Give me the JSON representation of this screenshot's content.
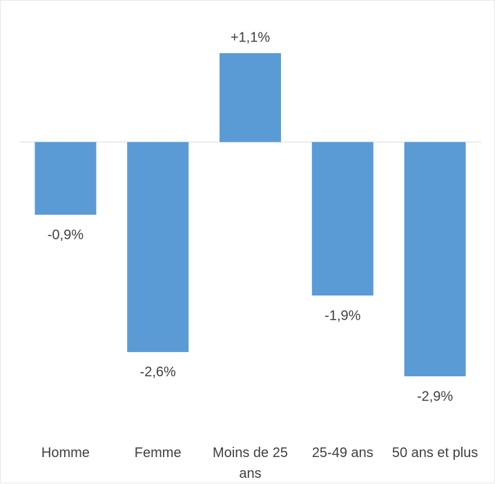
{
  "chart_data": {
    "type": "bar",
    "categories": [
      "Homme",
      "Femme",
      "Moins de 25 ans",
      "25-49 ans",
      "50 ans et plus"
    ],
    "values": [
      -0.9,
      -2.6,
      1.1,
      -1.9,
      -2.9
    ],
    "value_labels": [
      "-0,9%",
      "-2,6%",
      "+1,1%",
      "-1,9%",
      "-2,9%"
    ],
    "color": "#5b9bd5"
  }
}
